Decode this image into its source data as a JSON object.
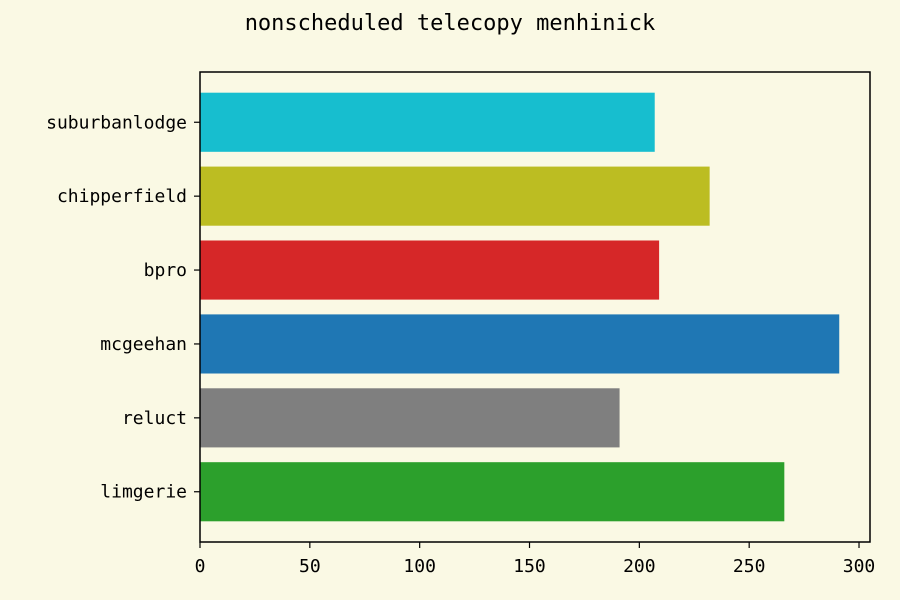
{
  "chart_data": {
    "type": "bar",
    "orientation": "horizontal",
    "title": "nonscheduled telecopy menhinick",
    "xlabel": "",
    "ylabel": "",
    "categories": [
      "suburbanlodge",
      "chipperfield",
      "bpro",
      "mcgeehan",
      "reluct",
      "limgerie"
    ],
    "values": [
      207,
      232,
      209,
      291,
      191,
      266
    ],
    "colors": [
      "#17becf",
      "#bcbd22",
      "#d62728",
      "#1f77b4",
      "#7f7f7f",
      "#2ca02c"
    ],
    "xlim": [
      0,
      305
    ],
    "xticks": [
      0,
      50,
      100,
      150,
      200,
      250,
      300
    ],
    "grid": false,
    "legend": "none"
  }
}
